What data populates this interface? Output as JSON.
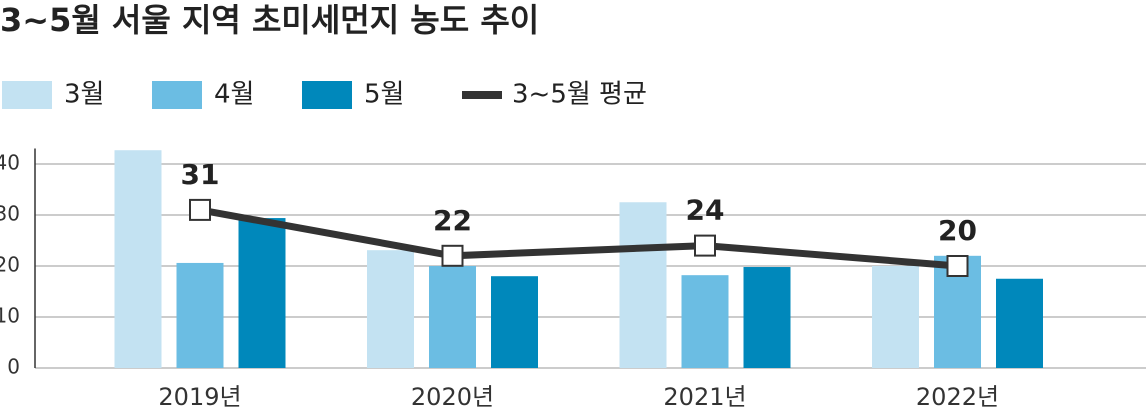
{
  "chart_data": {
    "type": "bar",
    "title": "3~5월 서울 지역 초미세먼지 농도 추이",
    "categories": [
      "2019년",
      "2020년",
      "2021년",
      "2022년"
    ],
    "series": [
      {
        "name": "3월",
        "color": "#c3e2f2",
        "values": [
          42.7,
          23.1,
          32.5,
          20
        ]
      },
      {
        "name": "4월",
        "color": "#6bbde3",
        "values": [
          20.6,
          20,
          18.2,
          22
        ]
      },
      {
        "name": "5월",
        "color": "#0088bb",
        "values": [
          29.4,
          18,
          19.8,
          17.5
        ]
      },
      {
        "name": "3~5월 평균",
        "type": "line",
        "color": "#333333",
        "values": [
          31,
          22,
          24,
          20
        ]
      }
    ],
    "ylim": [
      0,
      45
    ],
    "yticks": [
      0,
      10,
      20,
      30,
      40
    ],
    "grid": true
  }
}
